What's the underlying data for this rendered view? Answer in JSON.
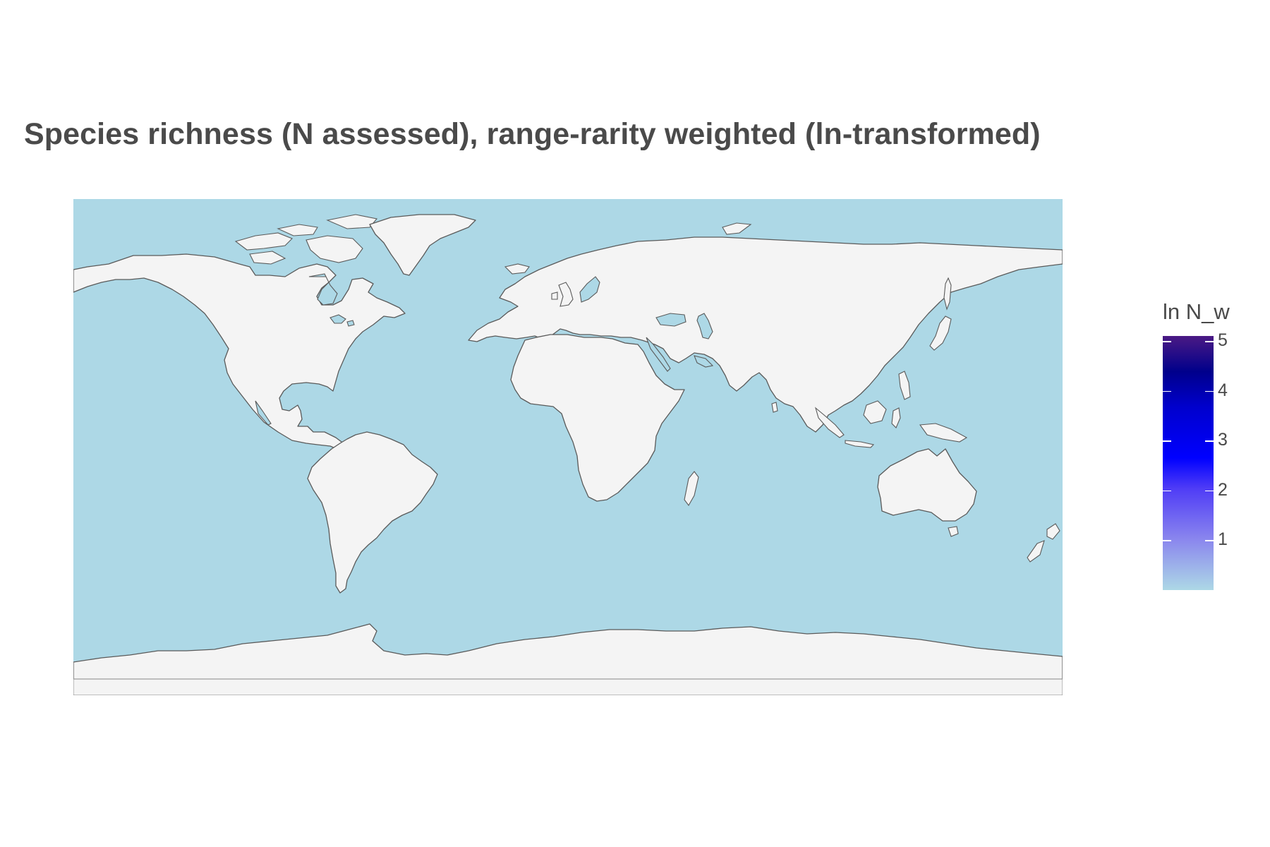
{
  "title": "Species richness (N assessed), range-rarity weighted (ln-transformed)",
  "map": {
    "projection": "equirectangular",
    "ocean_color": "#add8e6",
    "land_color": "#f4f4f4",
    "outline_color": "#5a5a5a"
  },
  "legend": {
    "title": "ln N_w",
    "ticks": [
      "1",
      "2",
      "3",
      "4",
      "5"
    ],
    "tick_values": [
      1,
      2,
      3,
      4,
      5
    ],
    "range": [
      0,
      5.1
    ],
    "low_color": "#add8e6",
    "high_color": "#4b1a84"
  }
}
